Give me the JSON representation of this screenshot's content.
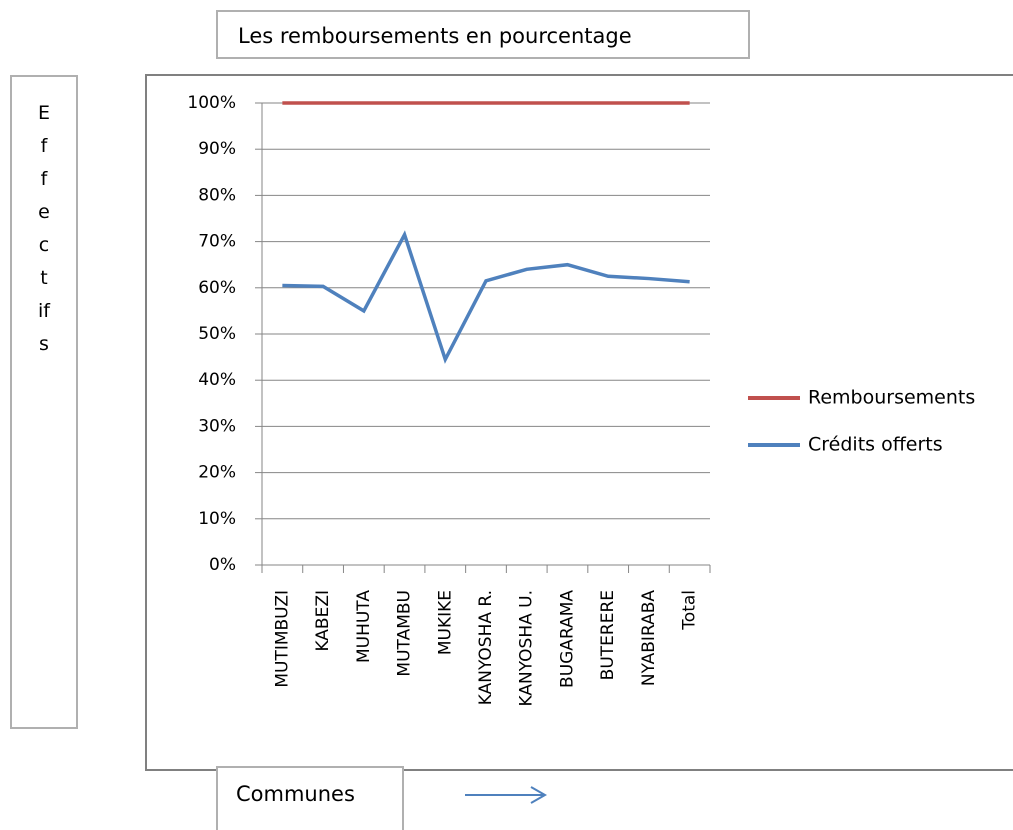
{
  "chart_data": {
    "type": "line",
    "title": "Les remboursements en pourcentage",
    "y_label": "Effectifs",
    "x_label": "Communes",
    "categories": [
      "MUTIMBUZI",
      "KABEZI",
      "MUHUTA",
      "MUTAMBU",
      "MUKIKE",
      "KANYOSHA R.",
      "KANYOSHA U.",
      "BUGARAMA",
      "BUTERERE",
      "NYABIRABA",
      "Total"
    ],
    "series": [
      {
        "name": "Remboursements",
        "color": "#c0504d",
        "values": [
          100,
          100,
          100,
          100,
          100,
          100,
          100,
          100,
          100,
          100,
          100
        ]
      },
      {
        "name": "Crédits offerts",
        "color": "#4f81bd",
        "values": [
          60.5,
          60.3,
          55,
          71.5,
          44.5,
          61.5,
          64,
          65,
          62.5,
          62,
          61.3
        ]
      }
    ],
    "ylim": [
      0,
      100
    ],
    "yticks": [
      {
        "value": 0,
        "label": "0%"
      },
      {
        "value": 10,
        "label": "10%"
      },
      {
        "value": 20,
        "label": "20%"
      },
      {
        "value": 30,
        "label": "30%"
      },
      {
        "value": 40,
        "label": "40%"
      },
      {
        "value": 50,
        "label": "50%"
      },
      {
        "value": 60,
        "label": "60%"
      },
      {
        "value": 70,
        "label": "70%"
      },
      {
        "value": 80,
        "label": "80%"
      },
      {
        "value": 90,
        "label": "90%"
      },
      {
        "value": 100,
        "label": "100%"
      }
    ],
    "grid": true,
    "legend": "right"
  }
}
